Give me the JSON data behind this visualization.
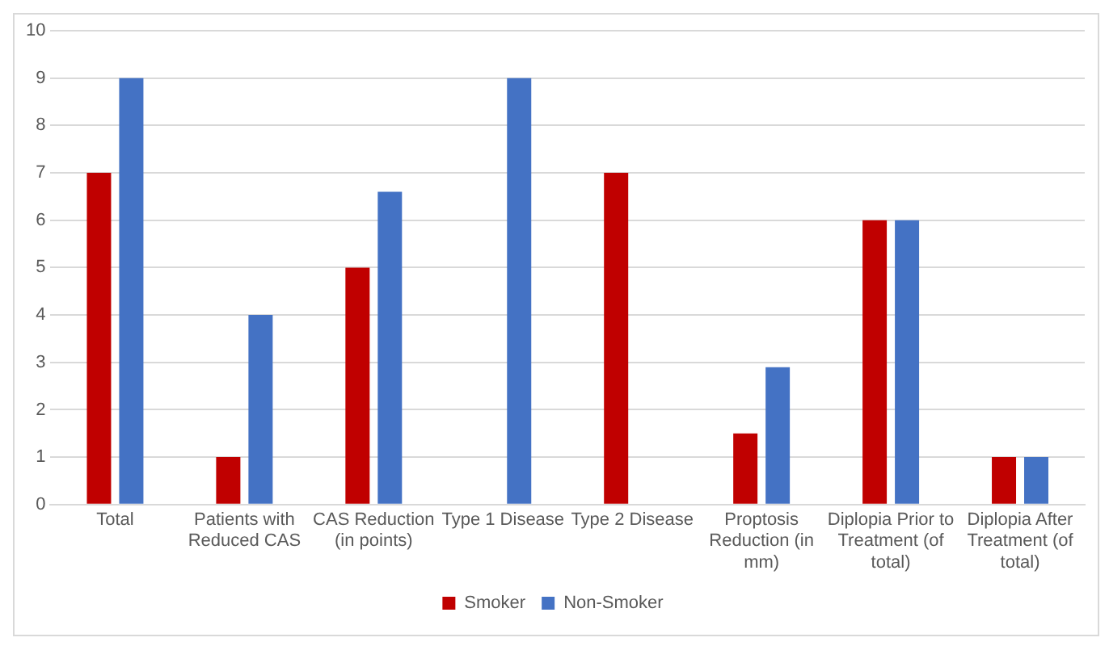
{
  "chart_data": {
    "type": "bar",
    "categories": [
      "Total",
      "Patients with Reduced CAS",
      "CAS Reduction (in points)",
      "Type 1 Disease",
      "Type 2 Disease",
      "Proptosis Reduction (in mm)",
      "Diplopia Prior to Treatment (of total)",
      "Diplopia After Treatment (of total)"
    ],
    "series": [
      {
        "name": "Smoker",
        "color": "#c00000",
        "values": [
          7,
          1,
          5,
          0,
          7,
          1.5,
          6,
          1
        ]
      },
      {
        "name": "Non-Smoker",
        "color": "#4472c4",
        "values": [
          9,
          4,
          6.6,
          9,
          0,
          2.9,
          6,
          1
        ]
      }
    ],
    "ylim": [
      0,
      10
    ],
    "yticks": [
      0,
      1,
      2,
      3,
      4,
      5,
      6,
      7,
      8,
      9,
      10
    ],
    "grid": "y",
    "legend": "bottom"
  }
}
